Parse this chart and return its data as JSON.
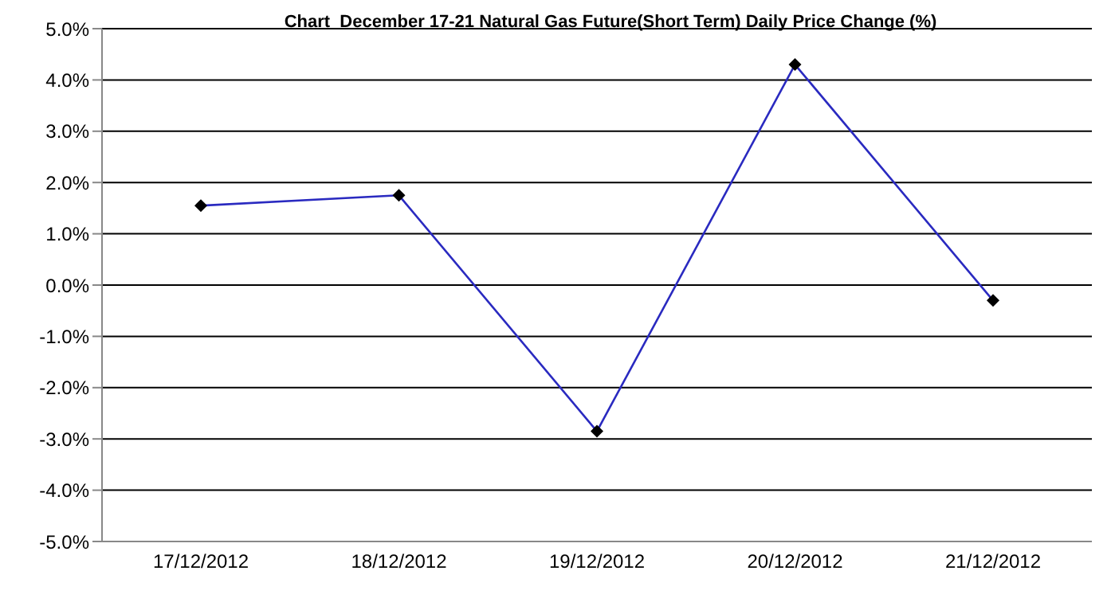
{
  "chart_data": {
    "type": "line",
    "title": "Chart  December 17-21 Natural Gas Future(Short Term) Daily Price Change (%)",
    "categories": [
      "17/12/2012",
      "18/12/2012",
      "19/12/2012",
      "20/12/2012",
      "21/12/2012"
    ],
    "series": [
      {
        "color": "#2a2ac0",
        "values": [
          1.55,
          1.75,
          -2.85,
          4.3,
          -0.3
        ]
      }
    ],
    "ylim": [
      -5,
      5
    ],
    "yticks": [
      {
        "value": -5,
        "label": "-5.0%"
      },
      {
        "value": -4,
        "label": "-4.0%"
      },
      {
        "value": -3,
        "label": "-3.0%"
      },
      {
        "value": -2,
        "label": "-2.0%"
      },
      {
        "value": -1,
        "label": "-1.0%"
      },
      {
        "value": 0,
        "label": "0.0%"
      },
      {
        "value": 1,
        "label": "1.0%"
      },
      {
        "value": 2,
        "label": "2.0%"
      },
      {
        "value": 3,
        "label": "3.0%"
      },
      {
        "value": 4,
        "label": "4.0%"
      },
      {
        "value": 5,
        "label": "5.0%"
      }
    ],
    "grid": "y",
    "marker": "diamond",
    "legend": false
  }
}
